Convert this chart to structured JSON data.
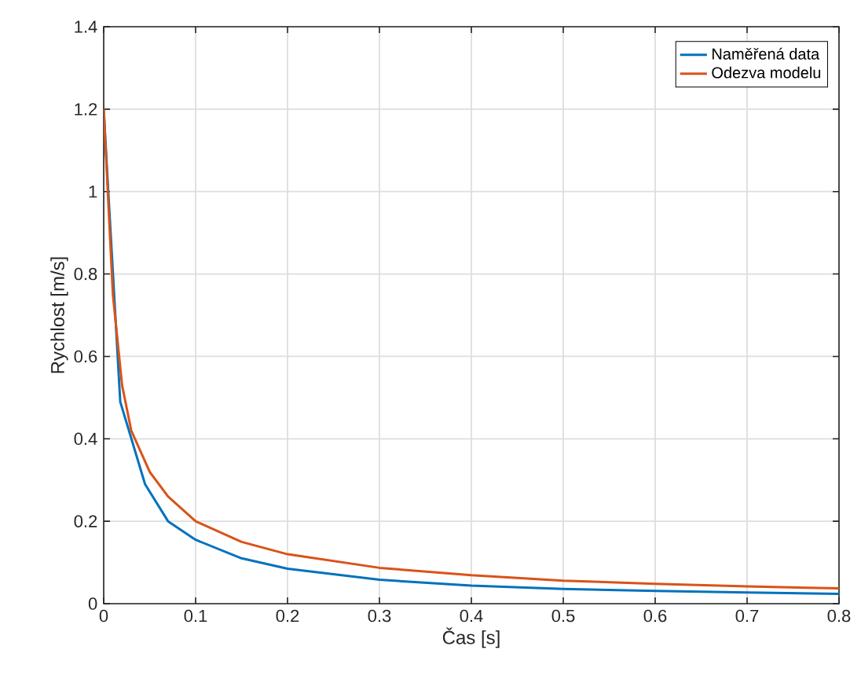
{
  "chart_data": {
    "type": "line",
    "xlabel": "Čas [s]",
    "ylabel": "Rychlost [m/s]",
    "xlim": [
      0,
      0.8
    ],
    "ylim": [
      0,
      1.4
    ],
    "xticks": [
      0,
      0.1,
      0.2,
      0.3,
      0.4,
      0.5,
      0.6,
      0.7,
      0.8
    ],
    "yticks": [
      0,
      0.2,
      0.4,
      0.6,
      0.8,
      1,
      1.2,
      1.4
    ],
    "grid": true,
    "legend": "top right",
    "line_style": "solid",
    "marker": "none",
    "series": [
      {
        "name": "Naměřená data",
        "color": "#0072bd",
        "x": [
          0,
          0.005,
          0.018,
          0.045,
          0.07,
          0.1,
          0.15,
          0.2,
          0.3,
          0.4,
          0.5,
          0.6,
          0.7,
          0.8
        ],
        "values": [
          1.2,
          1.0,
          0.49,
          0.29,
          0.2,
          0.155,
          0.11,
          0.085,
          0.058,
          0.044,
          0.036,
          0.031,
          0.027,
          0.024
        ]
      },
      {
        "name": "Odezva modelu",
        "color": "#d95319",
        "x": [
          0,
          0.01,
          0.02,
          0.03,
          0.05,
          0.07,
          0.1,
          0.15,
          0.2,
          0.3,
          0.4,
          0.5,
          0.6,
          0.7,
          0.8
        ],
        "values": [
          1.2,
          0.75,
          0.53,
          0.42,
          0.32,
          0.26,
          0.2,
          0.15,
          0.12,
          0.087,
          0.069,
          0.056,
          0.048,
          0.042,
          0.037
        ]
      }
    ]
  }
}
